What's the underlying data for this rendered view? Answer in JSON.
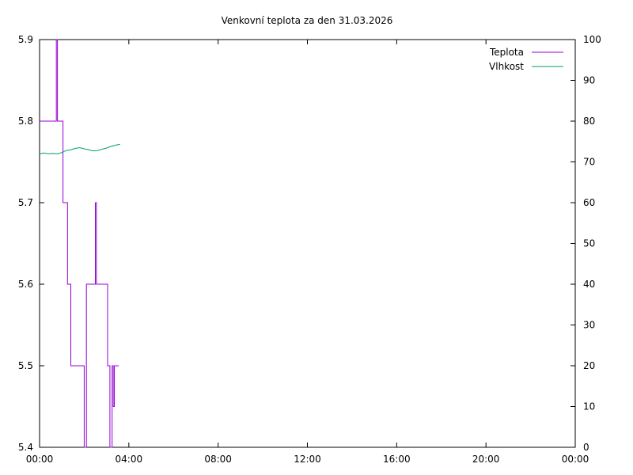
{
  "chart_data": {
    "type": "line",
    "title": "Venkovní teplota za den 31.03.2026",
    "x_ticks": [
      "00:00",
      "04:00",
      "08:00",
      "12:00",
      "16:00",
      "20:00",
      "00:00"
    ],
    "xlim_hours": [
      0,
      24
    ],
    "y_left": {
      "ylim": [
        5.4,
        5.9
      ],
      "ticks": [
        "5.4",
        "5.5",
        "5.6",
        "5.7",
        "5.8",
        "5.9"
      ]
    },
    "y_right": {
      "ylim": [
        0,
        100
      ],
      "ticks": [
        "0",
        "10",
        "20",
        "30",
        "40",
        "50",
        "60",
        "70",
        "80",
        "90",
        "100"
      ]
    },
    "grid": false,
    "legend_position": "top-right",
    "series": [
      {
        "name": "Teplota",
        "axis": "left",
        "color": "#9400d3",
        "step": true,
        "x": [
          0.0,
          0.75,
          0.8,
          0.85,
          1.05,
          1.15,
          1.25,
          1.3,
          1.4,
          1.6,
          2.0,
          2.1,
          2.5,
          2.55,
          2.65,
          3.05,
          3.15,
          3.25,
          3.3,
          3.35,
          3.45,
          3.55
        ],
        "y": [
          5.8,
          5.9,
          5.8,
          5.8,
          5.7,
          5.7,
          5.6,
          5.6,
          5.5,
          5.5,
          5.4,
          5.6,
          5.7,
          5.6,
          5.6,
          5.5,
          5.4,
          5.5,
          5.45,
          5.5,
          5.5,
          5.5
        ]
      },
      {
        "name": "Vlhkost",
        "axis": "right",
        "color": "#009e73",
        "x": [
          0.0,
          0.2,
          0.4,
          0.6,
          0.8,
          1.0,
          1.2,
          1.4,
          1.6,
          1.8,
          2.0,
          2.2,
          2.4,
          2.6,
          2.8,
          3.0,
          3.2,
          3.4,
          3.6
        ],
        "y": [
          72.0,
          72.2,
          72.0,
          72.1,
          72.0,
          72.3,
          72.8,
          73.0,
          73.3,
          73.5,
          73.2,
          73.0,
          72.7,
          72.8,
          73.1,
          73.4,
          73.8,
          74.1,
          74.3
        ]
      }
    ]
  }
}
